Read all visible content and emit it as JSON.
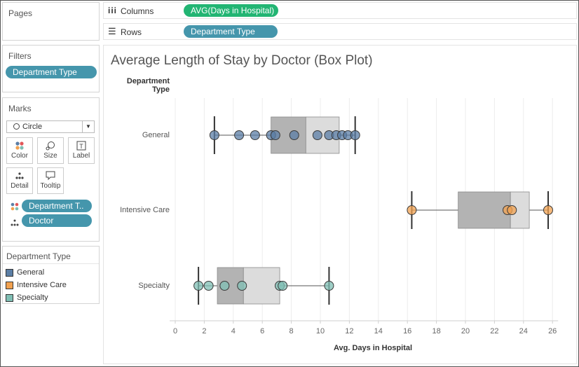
{
  "pages": {
    "title": "Pages"
  },
  "columns_shelf": {
    "label": "Columns",
    "pill": "AVG(Days in Hospital)"
  },
  "rows_shelf": {
    "label": "Rows",
    "pill": "Department Type"
  },
  "filters": {
    "title": "Filters",
    "pill": "Department Type"
  },
  "marks": {
    "title": "Marks",
    "mark_type": "Circle",
    "buttons": [
      {
        "label": "Color",
        "icon": "color-icon"
      },
      {
        "label": "Size",
        "icon": "size-icon"
      },
      {
        "label": "Label",
        "icon": "label-icon"
      },
      {
        "label": "Detail",
        "icon": "detail-icon"
      },
      {
        "label": "Tooltip",
        "icon": "tooltip-icon"
      }
    ],
    "fields": [
      {
        "label": "Department T..",
        "icon": "color-icon"
      },
      {
        "label": "Doctor",
        "icon": "detail-icon"
      }
    ]
  },
  "legend": {
    "title": "Department Type",
    "items": [
      {
        "label": "General",
        "color": "#5b7ea5"
      },
      {
        "label": "Intensive Care",
        "color": "#f1a150"
      },
      {
        "label": "Specialty",
        "color": "#7fbfb4"
      }
    ]
  },
  "view": {
    "title": "Average Length of Stay by Doctor (Box Plot)",
    "row_header": "Department Type"
  },
  "chart_data": {
    "type": "box",
    "title": "Average Length of Stay by Doctor (Box Plot)",
    "xlabel": "Avg. Days in Hospital",
    "ylabel": "Department Type",
    "xlim": [
      0,
      26
    ],
    "xticks": [
      0,
      2,
      4,
      6,
      8,
      10,
      12,
      14,
      16,
      18,
      20,
      22,
      24,
      26
    ],
    "grid": true,
    "categories": [
      "General",
      "Intensive Care",
      "Specialty"
    ],
    "series": [
      {
        "name": "General",
        "color": "#5b7ea5",
        "whisker_low": 2.7,
        "q1": 6.6,
        "median": 9.0,
        "q3": 11.3,
        "whisker_high": 12.4,
        "points": [
          2.7,
          4.4,
          5.5,
          6.6,
          6.9,
          8.2,
          9.8,
          10.6,
          11.1,
          11.5,
          11.9,
          12.4
        ]
      },
      {
        "name": "Intensive Care",
        "color": "#f1a150",
        "whisker_low": 16.3,
        "q1": 19.5,
        "median": 23.1,
        "q3": 24.4,
        "whisker_high": 25.7,
        "points": [
          16.3,
          22.9,
          23.2,
          25.7
        ]
      },
      {
        "name": "Specialty",
        "color": "#7fbfb4",
        "whisker_low": 1.6,
        "q1": 2.9,
        "median": 4.7,
        "q3": 7.2,
        "whisker_high": 10.6,
        "points": [
          1.6,
          2.3,
          3.4,
          4.6,
          7.2,
          7.4,
          10.6
        ]
      }
    ]
  }
}
